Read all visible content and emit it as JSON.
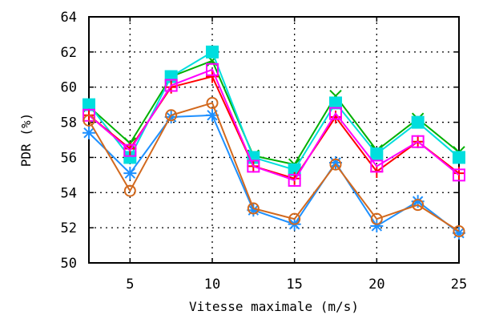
{
  "chart_data": {
    "type": "line",
    "title": "",
    "xlabel": "Vitesse maximale (m/s)",
    "ylabel": "PDR (%)",
    "xlim": [
      2.5,
      25
    ],
    "ylim": [
      50,
      64
    ],
    "x": [
      2.5,
      5,
      7.5,
      10,
      12.5,
      15,
      17.5,
      20,
      22.5,
      25
    ],
    "x_ticks": [
      5,
      10,
      15,
      20,
      25
    ],
    "y_ticks": [
      50,
      52,
      54,
      56,
      58,
      60,
      62,
      64
    ],
    "grid": true,
    "legend": "none",
    "series": [
      {
        "color": "#00b000",
        "marker": "x",
        "values": [
          58.9,
          56.8,
          60.6,
          61.5,
          56.1,
          55.6,
          59.5,
          56.4,
          58.2,
          56.3
        ]
      },
      {
        "color": "#00dede",
        "marker": "filled-square",
        "values": [
          59.0,
          56.0,
          60.6,
          62.0,
          56.0,
          55.3,
          59.1,
          56.2,
          58.0,
          56.0
        ]
      },
      {
        "color": "#ff0000",
        "marker": "plus",
        "values": [
          58.4,
          56.5,
          60.0,
          60.6,
          55.5,
          54.8,
          58.3,
          55.2,
          56.9,
          55.1
        ]
      },
      {
        "color": "#ff00ff",
        "marker": "square",
        "values": [
          58.4,
          56.4,
          60.1,
          61.0,
          55.5,
          54.7,
          58.5,
          55.5,
          56.9,
          55.0
        ]
      },
      {
        "color": "#1e90ff",
        "marker": "star",
        "values": [
          57.4,
          55.1,
          58.3,
          58.4,
          53.0,
          52.2,
          55.7,
          52.1,
          53.5,
          51.7
        ]
      },
      {
        "color": "#d2691e",
        "marker": "circle",
        "values": [
          58.1,
          54.1,
          58.4,
          59.1,
          53.1,
          52.5,
          55.6,
          52.5,
          53.3,
          51.8
        ]
      }
    ]
  }
}
